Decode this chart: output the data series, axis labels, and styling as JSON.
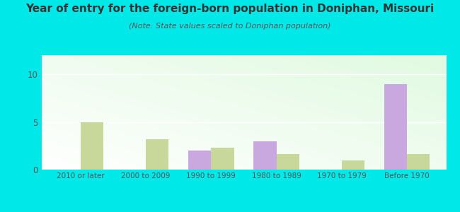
{
  "title": "Year of entry for the foreign-born population in Doniphan, Missouri",
  "subtitle": "(Note: State values scaled to Doniphan population)",
  "categories": [
    "2010 or later",
    "2000 to 2009",
    "1990 to 1999",
    "1980 to 1989",
    "1970 to 1979",
    "Before 1970"
  ],
  "doniphan_values": [
    0,
    0,
    2,
    3,
    0,
    9
  ],
  "missouri_values": [
    5,
    3.2,
    2.3,
    1.6,
    1.0,
    1.6
  ],
  "doniphan_color": "#c9a8e0",
  "missouri_color": "#c8d89a",
  "background_outer": "#00e8e8",
  "title_color": "#333333",
  "subtitle_color": "#555555",
  "title_fontsize": 11,
  "subtitle_fontsize": 8,
  "ylim": [
    0,
    12
  ],
  "yticks": [
    0,
    5,
    10
  ],
  "bar_width": 0.35
}
